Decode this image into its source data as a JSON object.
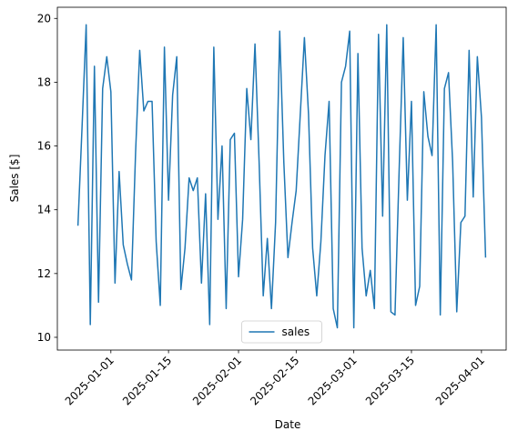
{
  "chart_data": {
    "type": "line",
    "xlabel": "Date",
    "ylabel": "Sales [$]",
    "x": [
      "2024-12-24",
      "2024-12-25",
      "2024-12-26",
      "2024-12-27",
      "2024-12-28",
      "2024-12-29",
      "2024-12-30",
      "2024-12-31",
      "2025-01-01",
      "2025-01-02",
      "2025-01-03",
      "2025-01-04",
      "2025-01-05",
      "2025-01-06",
      "2025-01-07",
      "2025-01-08",
      "2025-01-09",
      "2025-01-10",
      "2025-01-11",
      "2025-01-12",
      "2025-01-13",
      "2025-01-14",
      "2025-01-15",
      "2025-01-16",
      "2025-01-17",
      "2025-01-18",
      "2025-01-19",
      "2025-01-20",
      "2025-01-21",
      "2025-01-22",
      "2025-01-23",
      "2025-01-24",
      "2025-01-25",
      "2025-01-26",
      "2025-01-27",
      "2025-01-28",
      "2025-01-29",
      "2025-01-30",
      "2025-01-31",
      "2025-02-01",
      "2025-02-02",
      "2025-02-03",
      "2025-02-04",
      "2025-02-05",
      "2025-02-06",
      "2025-02-07",
      "2025-02-08",
      "2025-02-09",
      "2025-02-10",
      "2025-02-11",
      "2025-02-12",
      "2025-02-13",
      "2025-02-14",
      "2025-02-15",
      "2025-02-16",
      "2025-02-17",
      "2025-02-18",
      "2025-02-19",
      "2025-02-20",
      "2025-02-21",
      "2025-02-22",
      "2025-02-23",
      "2025-02-24",
      "2025-02-25",
      "2025-02-26",
      "2025-02-27",
      "2025-02-28",
      "2025-03-01",
      "2025-03-02",
      "2025-03-03",
      "2025-03-04",
      "2025-03-05",
      "2025-03-06",
      "2025-03-07",
      "2025-03-08",
      "2025-03-09",
      "2025-03-10",
      "2025-03-11",
      "2025-03-12",
      "2025-03-13",
      "2025-03-14",
      "2025-03-15",
      "2025-03-16",
      "2025-03-17",
      "2025-03-18",
      "2025-03-19",
      "2025-03-20",
      "2025-03-21",
      "2025-03-22",
      "2025-03-23",
      "2025-03-24",
      "2025-03-25",
      "2025-03-26",
      "2025-03-27",
      "2025-03-28",
      "2025-03-29",
      "2025-03-30",
      "2025-03-31",
      "2025-04-01",
      "2025-04-02"
    ],
    "series": [
      {
        "name": "sales",
        "color": "#1f77b4",
        "values": [
          13.5,
          16.6,
          19.8,
          10.4,
          18.5,
          11.1,
          17.8,
          18.8,
          17.7,
          11.7,
          15.2,
          12.9,
          12.3,
          11.8,
          15.8,
          19.0,
          17.1,
          17.4,
          17.4,
          13.0,
          11.0,
          19.1,
          14.3,
          17.6,
          18.8,
          11.5,
          12.8,
          15.0,
          14.6,
          15.0,
          11.7,
          14.5,
          10.4,
          19.1,
          13.7,
          16.0,
          10.9,
          16.2,
          16.4,
          11.9,
          13.7,
          17.8,
          16.2,
          19.2,
          15.5,
          11.3,
          13.1,
          10.9,
          13.6,
          19.6,
          15.5,
          12.5,
          13.6,
          14.6,
          17.0,
          19.4,
          17.0,
          12.8,
          11.3,
          13.0,
          15.7,
          17.4,
          10.9,
          10.3,
          18.0,
          18.5,
          19.6,
          10.3,
          18.9,
          12.8,
          11.3,
          12.1,
          10.9,
          19.5,
          13.8,
          19.8,
          10.8,
          10.7,
          15.2,
          19.4,
          14.3,
          17.4,
          11.0,
          11.6,
          17.7,
          16.3,
          15.7,
          19.8,
          10.7,
          17.8,
          18.3,
          15.5,
          10.8,
          13.6,
          13.8,
          19.0,
          14.4,
          18.8,
          16.9,
          12.5
        ]
      }
    ],
    "xlim": [
      "2024-12-19",
      "2025-04-07"
    ],
    "xticks": [
      "2025-01-01",
      "2025-01-15",
      "2025-02-01",
      "2025-02-15",
      "2025-03-01",
      "2025-03-15",
      "2025-04-01"
    ],
    "ylim": [
      9.6,
      20.35
    ],
    "yticks": [
      10,
      12,
      14,
      16,
      18,
      20
    ],
    "legend": "lower center"
  }
}
